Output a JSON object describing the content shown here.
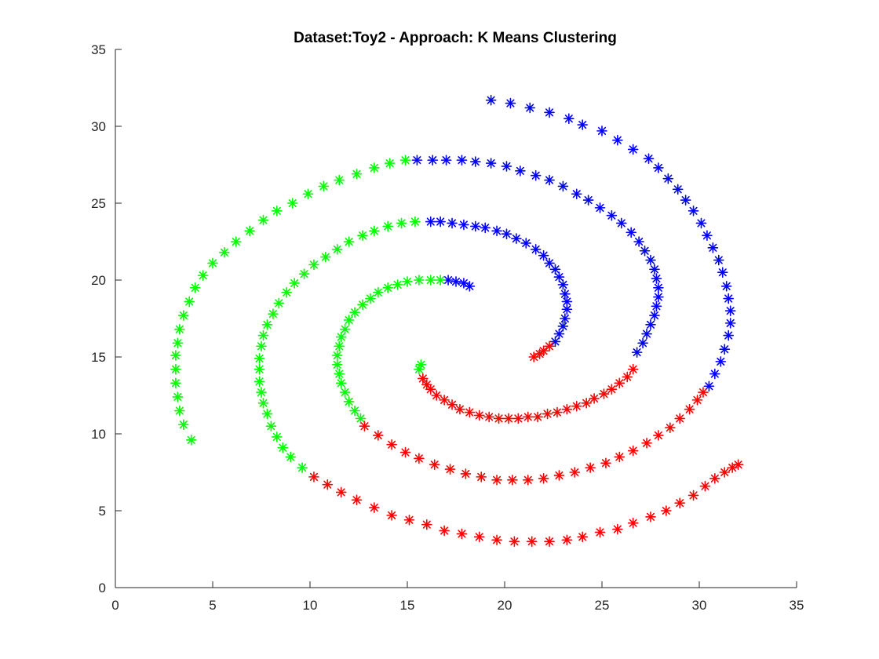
{
  "chart_data": {
    "type": "scatter",
    "title": "Dataset:Toy2 - Approach: K Means Clustering",
    "xlabel": "",
    "ylabel": "",
    "xlim": [
      0,
      35
    ],
    "ylim": [
      0,
      35
    ],
    "xticks": [
      0,
      5,
      10,
      15,
      20,
      25,
      30,
      35
    ],
    "yticks": [
      0,
      5,
      10,
      15,
      20,
      25,
      30,
      35
    ],
    "grid": false,
    "marker": "asterisk",
    "series": [
      {
        "color": "#0000ff",
        "points": [
          [
            19.3,
            31.7
          ],
          [
            20.3,
            31.5
          ],
          [
            21.3,
            31.2
          ],
          [
            22.3,
            30.9
          ],
          [
            23.3,
            30.5
          ],
          [
            24.0,
            30.1
          ],
          [
            25.0,
            29.7
          ],
          [
            25.8,
            29.1
          ],
          [
            26.6,
            28.5
          ],
          [
            27.4,
            27.9
          ],
          [
            27.9,
            27.3
          ],
          [
            28.4,
            26.6
          ],
          [
            28.9,
            25.9
          ],
          [
            29.3,
            25.2
          ],
          [
            29.7,
            24.5
          ],
          [
            30.1,
            23.7
          ],
          [
            30.4,
            22.9
          ],
          [
            30.7,
            22.1
          ],
          [
            31.0,
            21.3
          ],
          [
            31.2,
            20.5
          ],
          [
            31.4,
            19.6
          ],
          [
            31.5,
            18.8
          ],
          [
            31.6,
            18.0
          ],
          [
            31.6,
            17.2
          ],
          [
            31.5,
            16.4
          ],
          [
            31.3,
            15.5
          ],
          [
            31.1,
            14.7
          ],
          [
            30.8,
            13.9
          ],
          [
            30.5,
            13.1
          ],
          [
            15.5,
            27.8
          ],
          [
            16.3,
            27.8
          ],
          [
            17.0,
            27.8
          ],
          [
            17.8,
            27.8
          ],
          [
            18.5,
            27.7
          ],
          [
            19.3,
            27.6
          ],
          [
            20.1,
            27.4
          ],
          [
            20.8,
            27.1
          ],
          [
            21.6,
            26.8
          ],
          [
            22.3,
            26.5
          ],
          [
            23.0,
            26.1
          ],
          [
            23.7,
            25.6
          ],
          [
            24.3,
            25.2
          ],
          [
            24.9,
            24.7
          ],
          [
            25.5,
            24.2
          ],
          [
            26.0,
            23.7
          ],
          [
            26.5,
            23.1
          ],
          [
            26.9,
            22.5
          ],
          [
            27.2,
            21.9
          ],
          [
            27.5,
            21.3
          ],
          [
            27.7,
            20.7
          ],
          [
            27.8,
            20.1
          ],
          [
            27.9,
            19.5
          ],
          [
            27.9,
            18.9
          ],
          [
            27.8,
            18.3
          ],
          [
            27.7,
            17.7
          ],
          [
            27.5,
            17.1
          ],
          [
            27.3,
            16.5
          ],
          [
            27.1,
            15.9
          ],
          [
            26.8,
            15.3
          ],
          [
            16.2,
            23.8
          ],
          [
            16.7,
            23.8
          ],
          [
            17.3,
            23.7
          ],
          [
            17.9,
            23.6
          ],
          [
            18.5,
            23.5
          ],
          [
            19.0,
            23.4
          ],
          [
            19.6,
            23.2
          ],
          [
            20.1,
            23.0
          ],
          [
            20.6,
            22.7
          ],
          [
            21.1,
            22.4
          ],
          [
            21.6,
            22.0
          ],
          [
            22.0,
            21.6
          ],
          [
            22.3,
            21.1
          ],
          [
            22.6,
            20.7
          ],
          [
            22.8,
            20.2
          ],
          [
            23.0,
            19.7
          ],
          [
            23.1,
            19.1
          ],
          [
            23.2,
            18.6
          ],
          [
            23.2,
            18.1
          ],
          [
            23.1,
            17.5
          ],
          [
            23.0,
            17.0
          ],
          [
            22.8,
            16.5
          ],
          [
            22.6,
            16.0
          ],
          [
            17.1,
            20.0
          ],
          [
            17.5,
            19.9
          ],
          [
            17.9,
            19.8
          ],
          [
            18.2,
            19.6
          ]
        ]
      },
      {
        "color": "#00ff00",
        "points": [
          [
            3.9,
            9.6
          ],
          [
            3.5,
            10.6
          ],
          [
            3.3,
            11.5
          ],
          [
            3.2,
            12.4
          ],
          [
            3.1,
            13.3
          ],
          [
            3.1,
            14.2
          ],
          [
            3.1,
            15.1
          ],
          [
            3.2,
            15.9
          ],
          [
            3.3,
            16.8
          ],
          [
            3.5,
            17.7
          ],
          [
            3.8,
            18.6
          ],
          [
            4.1,
            19.5
          ],
          [
            4.5,
            20.3
          ],
          [
            5.0,
            21.1
          ],
          [
            5.6,
            21.8
          ],
          [
            6.2,
            22.5
          ],
          [
            6.9,
            23.2
          ],
          [
            7.6,
            23.9
          ],
          [
            8.3,
            24.5
          ],
          [
            9.1,
            25.0
          ],
          [
            9.9,
            25.6
          ],
          [
            10.7,
            26.1
          ],
          [
            11.5,
            26.5
          ],
          [
            12.4,
            26.9
          ],
          [
            13.3,
            27.3
          ],
          [
            14.1,
            27.6
          ],
          [
            14.9,
            27.8
          ],
          [
            9.6,
            7.8
          ],
          [
            9.0,
            8.5
          ],
          [
            8.6,
            9.1
          ],
          [
            8.3,
            9.8
          ],
          [
            8.0,
            10.5
          ],
          [
            7.8,
            11.3
          ],
          [
            7.6,
            12.0
          ],
          [
            7.5,
            12.7
          ],
          [
            7.4,
            13.4
          ],
          [
            7.4,
            14.2
          ],
          [
            7.4,
            14.9
          ],
          [
            7.5,
            15.7
          ],
          [
            7.6,
            16.4
          ],
          [
            7.8,
            17.1
          ],
          [
            8.1,
            17.8
          ],
          [
            8.4,
            18.5
          ],
          [
            8.8,
            19.2
          ],
          [
            9.2,
            19.8
          ],
          [
            9.7,
            20.4
          ],
          [
            10.2,
            21.0
          ],
          [
            10.8,
            21.5
          ],
          [
            11.4,
            22.0
          ],
          [
            12.0,
            22.5
          ],
          [
            12.7,
            22.9
          ],
          [
            13.3,
            23.2
          ],
          [
            14.0,
            23.5
          ],
          [
            14.7,
            23.7
          ],
          [
            15.4,
            23.8
          ],
          [
            12.6,
            11.0
          ],
          [
            12.3,
            11.5
          ],
          [
            12.0,
            12.1
          ],
          [
            11.8,
            12.7
          ],
          [
            11.6,
            13.3
          ],
          [
            11.5,
            13.9
          ],
          [
            11.4,
            14.5
          ],
          [
            11.4,
            15.1
          ],
          [
            11.5,
            15.7
          ],
          [
            11.6,
            16.3
          ],
          [
            11.8,
            16.8
          ],
          [
            12.0,
            17.4
          ],
          [
            12.3,
            17.9
          ],
          [
            12.7,
            18.4
          ],
          [
            13.1,
            18.8
          ],
          [
            13.5,
            19.2
          ],
          [
            14.0,
            19.5
          ],
          [
            14.5,
            19.7
          ],
          [
            15.0,
            19.9
          ],
          [
            15.6,
            20.0
          ],
          [
            16.2,
            20.0
          ],
          [
            16.7,
            20.0
          ],
          [
            15.6,
            14.2
          ],
          [
            15.7,
            14.5
          ]
        ]
      },
      {
        "color": "#ff0000",
        "points": [
          [
            10.2,
            7.2
          ],
          [
            10.9,
            6.7
          ],
          [
            11.6,
            6.2
          ],
          [
            12.4,
            5.7
          ],
          [
            13.3,
            5.2
          ],
          [
            14.2,
            4.7
          ],
          [
            15.1,
            4.4
          ],
          [
            16.0,
            4.1
          ],
          [
            16.9,
            3.7
          ],
          [
            17.8,
            3.5
          ],
          [
            18.7,
            3.3
          ],
          [
            19.6,
            3.1
          ],
          [
            20.5,
            3.0
          ],
          [
            21.4,
            3.0
          ],
          [
            22.3,
            3.0
          ],
          [
            23.2,
            3.1
          ],
          [
            24.0,
            3.3
          ],
          [
            24.9,
            3.6
          ],
          [
            25.8,
            3.8
          ],
          [
            26.6,
            4.2
          ],
          [
            27.5,
            4.6
          ],
          [
            28.3,
            5.0
          ],
          [
            29.0,
            5.5
          ],
          [
            29.7,
            6.0
          ],
          [
            30.3,
            6.6
          ],
          [
            30.8,
            7.1
          ],
          [
            31.3,
            7.5
          ],
          [
            31.7,
            7.8
          ],
          [
            32.0,
            8.0
          ],
          [
            12.8,
            10.5
          ],
          [
            13.5,
            9.9
          ],
          [
            14.2,
            9.3
          ],
          [
            14.9,
            8.8
          ],
          [
            15.6,
            8.4
          ],
          [
            16.4,
            8.0
          ],
          [
            17.2,
            7.7
          ],
          [
            18.0,
            7.4
          ],
          [
            18.8,
            7.2
          ],
          [
            19.6,
            7.0
          ],
          [
            20.4,
            7.0
          ],
          [
            21.2,
            7.0
          ],
          [
            22.0,
            7.1
          ],
          [
            22.8,
            7.3
          ],
          [
            23.6,
            7.5
          ],
          [
            24.4,
            7.8
          ],
          [
            25.2,
            8.1
          ],
          [
            25.9,
            8.5
          ],
          [
            26.6,
            8.9
          ],
          [
            27.3,
            9.4
          ],
          [
            27.9,
            9.9
          ],
          [
            28.5,
            10.4
          ],
          [
            29.0,
            11.0
          ],
          [
            29.5,
            11.6
          ],
          [
            29.9,
            12.2
          ],
          [
            30.2,
            12.7
          ],
          [
            15.8,
            13.6
          ],
          [
            16.0,
            13.2
          ],
          [
            16.2,
            12.9
          ],
          [
            16.5,
            12.5
          ],
          [
            16.9,
            12.2
          ],
          [
            17.3,
            11.9
          ],
          [
            17.7,
            11.6
          ],
          [
            18.2,
            11.4
          ],
          [
            18.7,
            11.2
          ],
          [
            19.2,
            11.1
          ],
          [
            19.7,
            11.0
          ],
          [
            20.2,
            11.0
          ],
          [
            20.7,
            11.0
          ],
          [
            21.2,
            11.1
          ],
          [
            21.7,
            11.1
          ],
          [
            22.2,
            11.3
          ],
          [
            22.7,
            11.4
          ],
          [
            23.2,
            11.6
          ],
          [
            23.7,
            11.8
          ],
          [
            24.2,
            12.0
          ],
          [
            24.6,
            12.3
          ],
          [
            25.1,
            12.6
          ],
          [
            25.5,
            12.9
          ],
          [
            25.9,
            13.3
          ],
          [
            26.3,
            13.7
          ],
          [
            26.6,
            14.2
          ],
          [
            21.5,
            15.0
          ],
          [
            21.8,
            15.2
          ],
          [
            22.0,
            15.4
          ],
          [
            22.3,
            15.7
          ]
        ]
      }
    ]
  }
}
